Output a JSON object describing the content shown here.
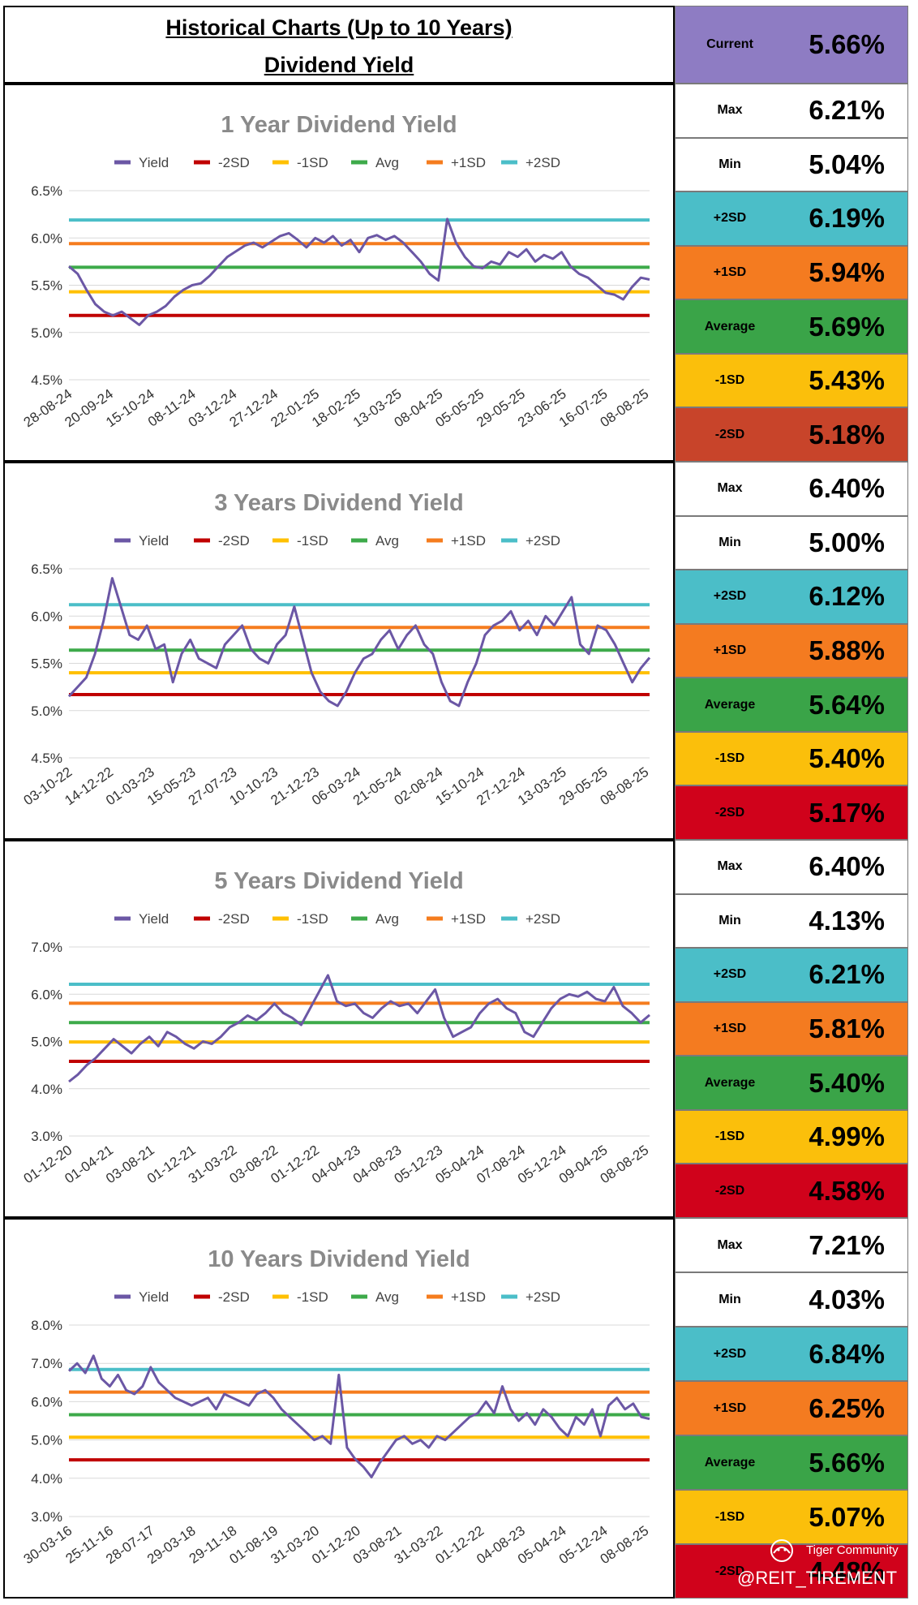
{
  "header": {
    "title_line1": "Historical Charts (Up to 10 Years)",
    "title_line2": "Dividend Yield",
    "current_label": "Current",
    "current_value": "5.66%",
    "current_color": "#8e7cc3"
  },
  "legend": {
    "yield": "Yield",
    "m2sd": "-2SD",
    "m1sd": "-1SD",
    "avg": "Avg",
    "p1sd": "+1SD",
    "p2sd": "+2SD"
  },
  "colors": {
    "yield": "#6b57a5",
    "m2sd": "#c00000",
    "m1sd": "#ffc000",
    "avg": "#3daa4a",
    "p1sd": "#f57c1e",
    "p2sd": "#4bbec8",
    "max_min_bg": "#ffffff",
    "p2sd_bg": "#4bbec8",
    "p1sd_bg": "#f47b20",
    "avg_bg": "#3aa448",
    "m1sd_bg": "#fbbf0b",
    "m2sd_bg": "#d0021b"
  },
  "watermark": {
    "brand": "Tiger Community",
    "handle": "@REIT_TIREMENT"
  },
  "stats_labels": {
    "max": "Max",
    "min": "Min",
    "p2sd": "+2SD",
    "p1sd": "+1SD",
    "avg": "Average",
    "m1sd": "-1SD",
    "m2sd": "-2SD"
  },
  "panels": [
    {
      "stats": {
        "max": "6.21%",
        "min": "5.04%",
        "p2sd": "6.19%",
        "p1sd": "5.94%",
        "avg": "5.69%",
        "m1sd": "5.43%",
        "m2sd": "5.18%"
      },
      "m2sd_bg": "#c8442a"
    },
    {
      "stats": {
        "max": "6.40%",
        "min": "5.00%",
        "p2sd": "6.12%",
        "p1sd": "5.88%",
        "avg": "5.64%",
        "m1sd": "5.40%",
        "m2sd": "5.17%"
      },
      "m2sd_bg": "#d0021b"
    },
    {
      "stats": {
        "max": "6.40%",
        "min": "4.13%",
        "p2sd": "6.21%",
        "p1sd": "5.81%",
        "avg": "5.40%",
        "m1sd": "4.99%",
        "m2sd": "4.58%"
      },
      "m2sd_bg": "#d0021b"
    },
    {
      "stats": {
        "max": "7.21%",
        "min": "4.03%",
        "p2sd": "6.84%",
        "p1sd": "6.25%",
        "avg": "5.66%",
        "m1sd": "5.07%",
        "m2sd": "4.48%"
      },
      "m2sd_bg": "#d0021b"
    }
  ],
  "chart_data": [
    {
      "type": "line",
      "title": "1 Year Dividend Yield",
      "legend_placement": "top",
      "grid": true,
      "ylim": [
        4.5,
        6.5
      ],
      "yticks": [
        "4.5%",
        "5.0%",
        "5.5%",
        "6.0%",
        "6.5%"
      ],
      "ytick_values": [
        4.5,
        5.0,
        5.5,
        6.0,
        6.5
      ],
      "x_tick_labels": [
        "28-08-24",
        "20-09-24",
        "15-10-24",
        "08-11-24",
        "03-12-24",
        "27-12-24",
        "22-01-25",
        "18-02-25",
        "13-03-25",
        "08-04-25",
        "05-05-25",
        "29-05-25",
        "23-06-25",
        "16-07-25",
        "08-08-25"
      ],
      "reference_lines": {
        "p2sd": 6.19,
        "p1sd": 5.94,
        "avg": 5.69,
        "m1sd": 5.43,
        "m2sd": 5.18
      },
      "series": [
        {
          "name": "Yield",
          "values": [
            5.7,
            5.62,
            5.45,
            5.3,
            5.22,
            5.18,
            5.22,
            5.15,
            5.08,
            5.18,
            5.22,
            5.28,
            5.38,
            5.45,
            5.5,
            5.52,
            5.6,
            5.7,
            5.8,
            5.86,
            5.92,
            5.95,
            5.9,
            5.96,
            6.02,
            6.05,
            5.98,
            5.9,
            6.0,
            5.95,
            6.02,
            5.92,
            5.98,
            5.85,
            6.0,
            6.03,
            5.98,
            6.02,
            5.95,
            5.85,
            5.75,
            5.62,
            5.55,
            6.2,
            5.95,
            5.8,
            5.7,
            5.68,
            5.75,
            5.72,
            5.85,
            5.8,
            5.88,
            5.75,
            5.82,
            5.78,
            5.85,
            5.7,
            5.62,
            5.58,
            5.5,
            5.42,
            5.4,
            5.35,
            5.48,
            5.58,
            5.56
          ]
        }
      ]
    },
    {
      "type": "line",
      "title": "3 Years Dividend Yield",
      "legend_placement": "top",
      "grid": true,
      "ylim": [
        4.5,
        6.5
      ],
      "yticks": [
        "4.5%",
        "5.0%",
        "5.5%",
        "6.0%",
        "6.5%"
      ],
      "ytick_values": [
        4.5,
        5.0,
        5.5,
        6.0,
        6.5
      ],
      "x_tick_labels": [
        "03-10-22",
        "14-12-22",
        "01-03-23",
        "15-05-23",
        "27-07-23",
        "10-10-23",
        "21-12-23",
        "06-03-24",
        "21-05-24",
        "02-08-24",
        "15-10-24",
        "27-12-24",
        "13-03-25",
        "29-05-25",
        "08-08-25"
      ],
      "reference_lines": {
        "p2sd": 6.12,
        "p1sd": 5.88,
        "avg": 5.64,
        "m1sd": 5.4,
        "m2sd": 5.17
      },
      "series": [
        {
          "name": "Yield",
          "values": [
            5.15,
            5.25,
            5.35,
            5.6,
            5.95,
            6.4,
            6.1,
            5.8,
            5.75,
            5.9,
            5.65,
            5.7,
            5.3,
            5.6,
            5.75,
            5.55,
            5.5,
            5.45,
            5.7,
            5.8,
            5.9,
            5.65,
            5.55,
            5.5,
            5.7,
            5.8,
            6.1,
            5.75,
            5.4,
            5.2,
            5.1,
            5.05,
            5.2,
            5.4,
            5.55,
            5.6,
            5.75,
            5.85,
            5.65,
            5.8,
            5.9,
            5.7,
            5.6,
            5.3,
            5.1,
            5.05,
            5.3,
            5.5,
            5.8,
            5.9,
            5.95,
            6.05,
            5.85,
            5.95,
            5.8,
            6.0,
            5.9,
            6.05,
            6.2,
            5.7,
            5.6,
            5.9,
            5.85,
            5.7,
            5.5,
            5.3,
            5.45,
            5.56
          ]
        }
      ]
    },
    {
      "type": "line",
      "title": "5 Years Dividend Yield",
      "legend_placement": "top",
      "grid": true,
      "ylim": [
        3.0,
        7.0
      ],
      "yticks": [
        "3.0%",
        "4.0%",
        "5.0%",
        "6.0%",
        "7.0%"
      ],
      "ytick_values": [
        3.0,
        4.0,
        5.0,
        6.0,
        7.0
      ],
      "x_tick_labels": [
        "01-12-20",
        "01-04-21",
        "03-08-21",
        "01-12-21",
        "31-03-22",
        "03-08-22",
        "01-12-22",
        "04-04-23",
        "04-08-23",
        "05-12-23",
        "05-04-24",
        "07-08-24",
        "05-12-24",
        "09-04-25",
        "08-08-25"
      ],
      "reference_lines": {
        "p2sd": 6.21,
        "p1sd": 5.81,
        "avg": 5.4,
        "m1sd": 4.99,
        "m2sd": 4.58
      },
      "series": [
        {
          "name": "Yield",
          "values": [
            4.15,
            4.3,
            4.5,
            4.65,
            4.85,
            5.05,
            4.9,
            4.75,
            4.95,
            5.1,
            4.9,
            5.2,
            5.1,
            4.95,
            4.85,
            5.0,
            4.95,
            5.1,
            5.3,
            5.4,
            5.55,
            5.45,
            5.6,
            5.8,
            5.6,
            5.5,
            5.35,
            5.7,
            6.05,
            6.4,
            5.85,
            5.75,
            5.8,
            5.6,
            5.5,
            5.7,
            5.85,
            5.75,
            5.8,
            5.6,
            5.85,
            6.1,
            5.5,
            5.1,
            5.2,
            5.3,
            5.6,
            5.8,
            5.9,
            5.7,
            5.6,
            5.2,
            5.1,
            5.4,
            5.7,
            5.9,
            6.0,
            5.95,
            6.05,
            5.9,
            5.85,
            6.15,
            5.75,
            5.6,
            5.4,
            5.56
          ]
        }
      ]
    },
    {
      "type": "line",
      "title": "10 Years Dividend Yield",
      "legend_placement": "top",
      "grid": true,
      "ylim": [
        3.0,
        8.0
      ],
      "yticks": [
        "3.0%",
        "4.0%",
        "5.0%",
        "6.0%",
        "7.0%",
        "8.0%"
      ],
      "ytick_values": [
        3.0,
        4.0,
        5.0,
        6.0,
        7.0,
        8.0
      ],
      "x_tick_labels": [
        "30-03-16",
        "25-11-16",
        "28-07-17",
        "29-03-18",
        "29-11-18",
        "01-08-19",
        "31-03-20",
        "01-12-20",
        "03-08-21",
        "31-03-22",
        "01-12-22",
        "04-08-23",
        "05-04-24",
        "05-12-24",
        "08-08-25"
      ],
      "reference_lines": {
        "p2sd": 6.84,
        "p1sd": 6.25,
        "avg": 5.66,
        "m1sd": 5.07,
        "m2sd": 4.48
      },
      "series": [
        {
          "name": "Yield",
          "values": [
            6.8,
            7.0,
            6.75,
            7.2,
            6.6,
            6.4,
            6.7,
            6.3,
            6.2,
            6.4,
            6.9,
            6.5,
            6.3,
            6.1,
            6.0,
            5.9,
            6.0,
            6.1,
            5.8,
            6.2,
            6.1,
            6.0,
            5.9,
            6.2,
            6.3,
            6.1,
            5.8,
            5.6,
            5.4,
            5.2,
            5.0,
            5.1,
            4.9,
            6.7,
            4.8,
            4.5,
            4.3,
            4.03,
            4.4,
            4.7,
            5.0,
            5.1,
            4.9,
            5.0,
            4.8,
            5.1,
            5.0,
            5.2,
            5.4,
            5.6,
            5.7,
            6.0,
            5.7,
            6.4,
            5.8,
            5.5,
            5.7,
            5.4,
            5.8,
            5.6,
            5.3,
            5.1,
            5.6,
            5.4,
            5.8,
            5.1,
            5.9,
            6.1,
            5.8,
            5.95,
            5.6,
            5.55
          ]
        }
      ]
    }
  ]
}
